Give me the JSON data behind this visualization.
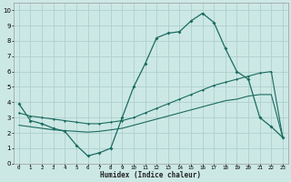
{
  "xlabel": "Humidex (Indice chaleur)",
  "bg_color": "#cce8e5",
  "grid_color": "#aed0cc",
  "line_color": "#1a6b60",
  "xlim": [
    -0.5,
    23.5
  ],
  "ylim": [
    0,
    10.5
  ],
  "xticks": [
    0,
    1,
    2,
    3,
    4,
    5,
    6,
    7,
    8,
    9,
    10,
    11,
    12,
    13,
    14,
    15,
    16,
    17,
    18,
    19,
    20,
    21,
    22,
    23
  ],
  "yticks": [
    0,
    1,
    2,
    3,
    4,
    5,
    6,
    7,
    8,
    9,
    10
  ],
  "series1_x": [
    0,
    1,
    2,
    3,
    4,
    5,
    6,
    7,
    8,
    9,
    10,
    11,
    12,
    13,
    14,
    15,
    16,
    17,
    18,
    19,
    20,
    21,
    22,
    23
  ],
  "series1_y": [
    3.9,
    2.8,
    2.6,
    2.3,
    2.1,
    1.2,
    0.5,
    0.7,
    1.0,
    3.0,
    5.0,
    6.5,
    8.2,
    8.5,
    8.6,
    9.3,
    9.8,
    9.2,
    7.5,
    6.0,
    5.5,
    3.0,
    2.4,
    1.7
  ],
  "series2_x": [
    0,
    1,
    2,
    3,
    4,
    5,
    6,
    7,
    8,
    9,
    10,
    11,
    12,
    13,
    14,
    15,
    16,
    17,
    18,
    19,
    20,
    21,
    22,
    23
  ],
  "series2_y": [
    3.3,
    3.1,
    3.0,
    2.9,
    2.8,
    2.7,
    2.6,
    2.6,
    2.7,
    2.8,
    3.0,
    3.3,
    3.6,
    3.9,
    4.2,
    4.5,
    4.8,
    5.1,
    5.3,
    5.5,
    5.7,
    5.9,
    6.0,
    1.7
  ],
  "series3_x": [
    0,
    1,
    2,
    3,
    4,
    5,
    6,
    7,
    8,
    9,
    10,
    11,
    12,
    13,
    14,
    15,
    16,
    17,
    18,
    19,
    20,
    21,
    22,
    23
  ],
  "series3_y": [
    2.5,
    2.4,
    2.3,
    2.2,
    2.15,
    2.1,
    2.05,
    2.1,
    2.2,
    2.3,
    2.5,
    2.7,
    2.9,
    3.1,
    3.3,
    3.5,
    3.7,
    3.9,
    4.1,
    4.2,
    4.4,
    4.5,
    4.5,
    1.7
  ]
}
